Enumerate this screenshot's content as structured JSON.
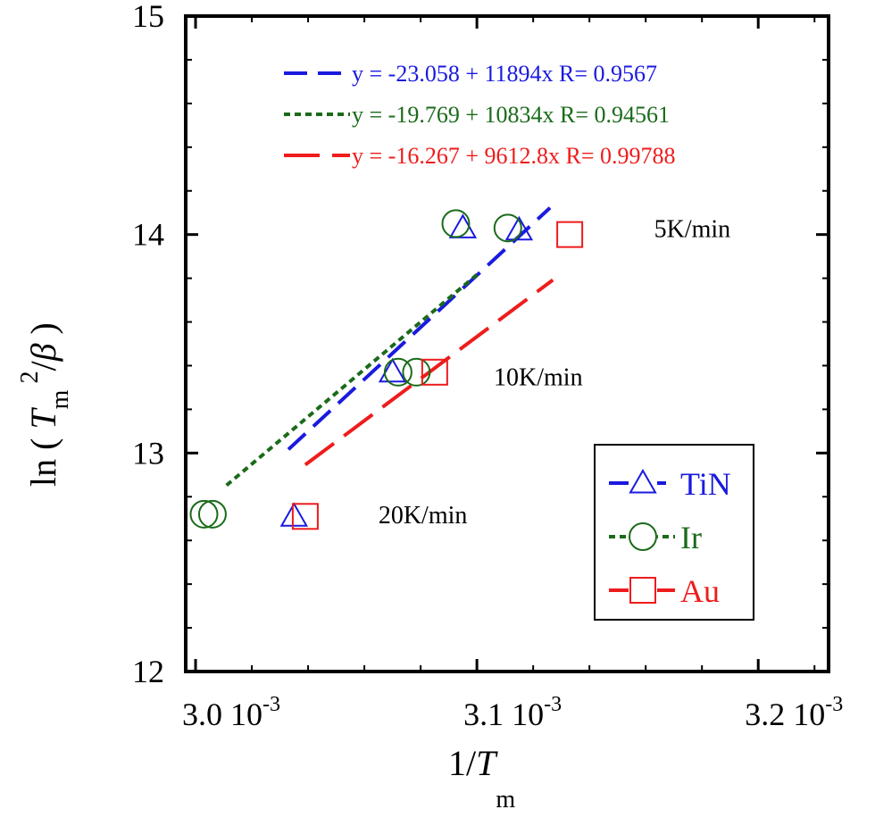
{
  "chart_data": {
    "type": "scatter",
    "ylabel_parts": {
      "prefix": "ln ( ",
      "var": "T",
      "sub": "m",
      "sup": "2",
      "mid": "/",
      "greek": "β",
      "suffix": " )"
    },
    "xlabel_parts": {
      "prefix": "1/",
      "var": "T",
      "sub": "m"
    },
    "xlim": [
      0.0029965,
      0.003225
    ],
    "ylim": [
      12,
      15
    ],
    "x_ticks": [
      {
        "value": 0.003,
        "mantissa": "3.0",
        "base": "10",
        "exp": "-3"
      },
      {
        "value": 0.0031,
        "mantissa": "3.1",
        "base": "10",
        "exp": "-3"
      },
      {
        "value": 0.0032,
        "mantissa": "3.2",
        "base": "10",
        "exp": "-3"
      }
    ],
    "y_ticks": [
      {
        "value": 12,
        "label": "12"
      },
      {
        "value": 13,
        "label": "13"
      },
      {
        "value": 14,
        "label": "14"
      },
      {
        "value": 15,
        "label": "15"
      }
    ],
    "series": [
      {
        "name": "TiN",
        "color": "#1a1adf",
        "marker": "triangle",
        "line": "dash",
        "fit_text": "y = -23.058 + 11894x   R= 0.9567",
        "x": [
          0.003035,
          0.00307,
          0.003095,
          0.003115
        ],
        "y": [
          12.71,
          13.37,
          14.03,
          14.02
        ],
        "fit": {
          "a": -23.058,
          "b": 11894,
          "x_range": [
            0.003033,
            0.003126
          ]
        }
      },
      {
        "name": "Ir",
        "color": "#1a6b1a",
        "marker": "circle",
        "line": "dot",
        "fit_text": "y = -19.769 + 10834x   R= 0.94561",
        "x": [
          0.003003,
          0.003006,
          0.003072,
          0.0030785,
          0.0030925,
          0.003111
        ],
        "y": [
          12.72,
          12.72,
          13.37,
          13.37,
          14.05,
          14.03
        ],
        "fit": {
          "a": -19.769,
          "b": 10834,
          "x_range": [
            0.003011,
            0.0031
          ]
        }
      },
      {
        "name": "Au",
        "color": "#ee1c1c",
        "marker": "square",
        "line": "longdash",
        "fit_text": "y = -16.267 + 9612.8x   R= 0.99788",
        "x": [
          0.003039,
          0.003085,
          0.003133
        ],
        "y": [
          12.71,
          13.37,
          14.0
        ],
        "fit": {
          "a": -16.267,
          "b": 9612.8,
          "x_range": [
            0.003039,
            0.003127
          ]
        }
      }
    ],
    "annotations": [
      {
        "text": "5K/min",
        "x": 0.003163,
        "y": 14.03
      },
      {
        "text": "10K/min",
        "x": 0.003106,
        "y": 13.35
      },
      {
        "text": "20K/min",
        "x": 0.003065,
        "y": 12.72
      }
    ],
    "legend_position": "bottom-right",
    "fit_legend_position": "top",
    "grid": false
  }
}
